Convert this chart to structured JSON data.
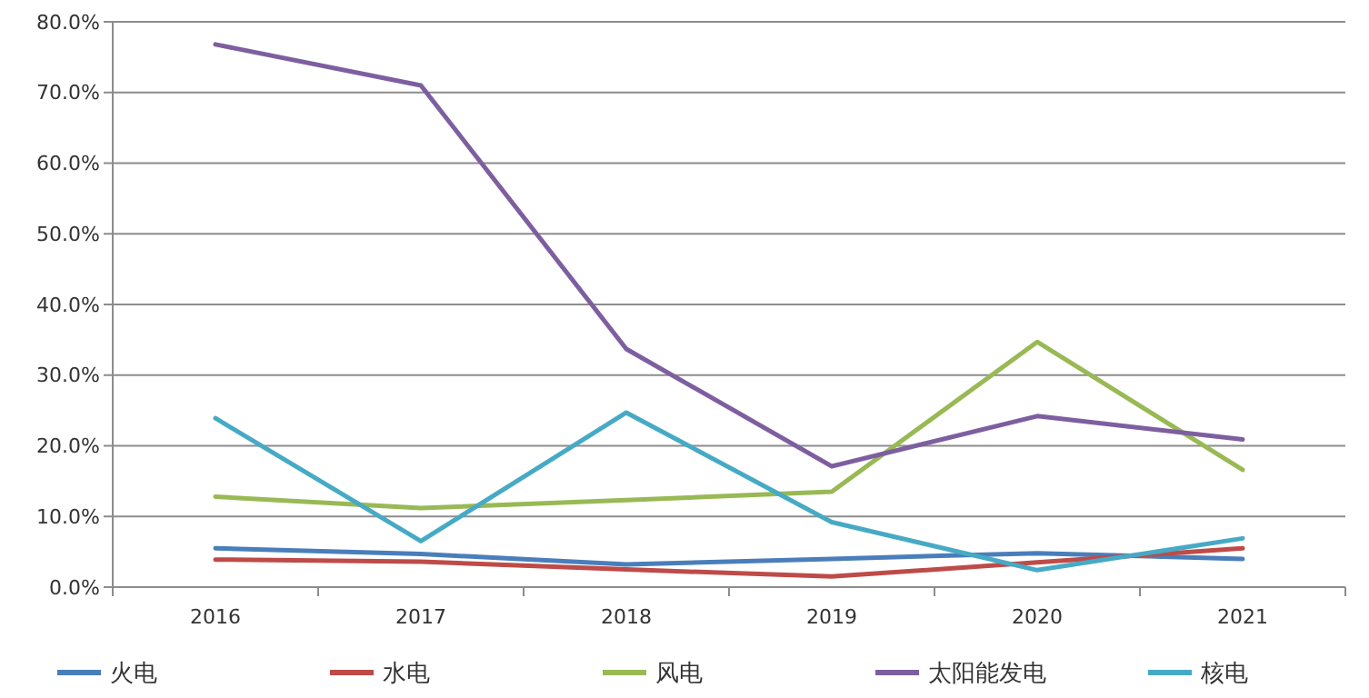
{
  "chart_data": {
    "type": "line",
    "categories": [
      "2016",
      "2017",
      "2018",
      "2019",
      "2020",
      "2021"
    ],
    "series": [
      {
        "name": "火电",
        "color": "#4a7ebb",
        "values": [
          5.5,
          4.7,
          3.2,
          4.0,
          4.8,
          4.0
        ]
      },
      {
        "name": "水电",
        "color": "#be4b48",
        "values": [
          3.9,
          3.6,
          2.5,
          1.5,
          3.5,
          5.5
        ]
      },
      {
        "name": "风电",
        "color": "#98b954",
        "values": [
          12.8,
          11.2,
          12.3,
          13.5,
          34.7,
          16.6
        ]
      },
      {
        "name": "太阳能发电",
        "color": "#7d5fa0",
        "values": [
          76.8,
          71.0,
          33.7,
          17.1,
          24.2,
          20.9
        ]
      },
      {
        "name": "核电",
        "color": "#46aac5",
        "values": [
          23.9,
          6.5,
          24.7,
          9.2,
          2.4,
          6.9
        ]
      }
    ],
    "ylim": [
      0,
      80
    ],
    "yticks": [
      {
        "value": 0,
        "label": "0.0%"
      },
      {
        "value": 10,
        "label": "10.0%"
      },
      {
        "value": 20,
        "label": "20.0%"
      },
      {
        "value": 30,
        "label": "30.0%"
      },
      {
        "value": 40,
        "label": "40.0%"
      },
      {
        "value": 50,
        "label": "50.0%"
      },
      {
        "value": 60,
        "label": "60.0%"
      },
      {
        "value": 70,
        "label": "70.0%"
      },
      {
        "value": 80,
        "label": "80.0%"
      }
    ],
    "grid": "y",
    "legend": "bottom",
    "marker": "none",
    "line_style": "solid"
  }
}
